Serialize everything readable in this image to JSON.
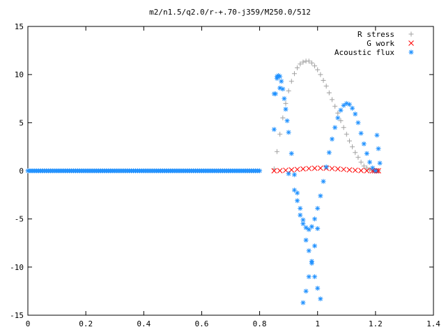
{
  "chart_data": {
    "type": "scatter",
    "title": "m2/n1.5/q2.0/r-+.70-j359/M250.0/512",
    "xlabel": "",
    "ylabel": "",
    "xlim": [
      0,
      1.4
    ],
    "ylim": [
      -15,
      15
    ],
    "x_ticks": [
      "0",
      "0.2",
      "0.4",
      "0.6",
      "0.8",
      "1",
      "1.2",
      "1.4"
    ],
    "y_ticks": [
      "15",
      "10",
      "5",
      "0",
      "-5",
      "-10",
      "-15"
    ],
    "grid": false,
    "legend_position": "top-right",
    "series": [
      {
        "name": "R stress",
        "marker": "plus",
        "color": "#a0a0a0",
        "x": [
          0,
          0.05,
          0.1,
          0.15,
          0.2,
          0.25,
          0.3,
          0.35,
          0.4,
          0.45,
          0.5,
          0.55,
          0.6,
          0.65,
          0.7,
          0.75,
          0.8,
          0.85,
          0.86,
          0.87,
          0.88,
          0.89,
          0.9,
          0.91,
          0.92,
          0.93,
          0.94,
          0.95,
          0.96,
          0.97,
          0.98,
          0.99,
          1.0,
          1.01,
          1.02,
          1.03,
          1.04,
          1.05,
          1.06,
          1.07,
          1.08,
          1.09,
          1.1,
          1.11,
          1.12,
          1.13,
          1.14,
          1.15,
          1.16,
          1.17,
          1.18,
          1.19,
          1.2,
          1.21
        ],
        "y": [
          0,
          0,
          0,
          0,
          0,
          0,
          0,
          0,
          0,
          0,
          0,
          0,
          0,
          0,
          0,
          0,
          0,
          0.2,
          2.0,
          3.8,
          5.5,
          7.0,
          8.3,
          9.3,
          10.1,
          10.7,
          11.1,
          11.3,
          11.4,
          11.4,
          11.2,
          10.9,
          10.5,
          10.0,
          9.4,
          8.8,
          8.1,
          7.4,
          6.7,
          6.0,
          5.2,
          4.5,
          3.8,
          3.1,
          2.5,
          1.9,
          1.4,
          0.9,
          0.5,
          0.3,
          0.1,
          0.05,
          0,
          0
        ]
      },
      {
        "name": "G work",
        "marker": "cross",
        "color": "#ff0000",
        "x": [
          0.85,
          0.87,
          0.89,
          0.91,
          0.93,
          0.95,
          0.97,
          0.99,
          1.01,
          1.03,
          1.05,
          1.07,
          1.09,
          1.11,
          1.13,
          1.15,
          1.17,
          1.19,
          1.21
        ],
        "y": [
          0,
          0.02,
          0.06,
          0.1,
          0.15,
          0.2,
          0.24,
          0.27,
          0.28,
          0.27,
          0.24,
          0.2,
          0.15,
          0.1,
          0.06,
          0.03,
          0.01,
          0,
          0
        ]
      },
      {
        "name": "Acoustic flux",
        "marker": "star",
        "color": "#1e90ff",
        "x": [
          0,
          0.05,
          0.1,
          0.15,
          0.2,
          0.25,
          0.3,
          0.35,
          0.4,
          0.45,
          0.5,
          0.55,
          0.6,
          0.65,
          0.7,
          0.75,
          0.8,
          0.85,
          0.855,
          0.86,
          0.865,
          0.87,
          0.875,
          0.88,
          0.885,
          0.89,
          0.895,
          0.9,
          0.91,
          0.92,
          0.93,
          0.94,
          0.95,
          0.96,
          0.97,
          0.98,
          0.99,
          1.0,
          1.01,
          1.02,
          1.03,
          1.04,
          1.05,
          1.06,
          1.07,
          1.08,
          1.09,
          1.1,
          1.11,
          1.12,
          1.13,
          1.14,
          1.15,
          1.16,
          1.17,
          1.18,
          1.19,
          1.2,
          1.205,
          1.21,
          1.215,
          0.85,
          0.86,
          0.87,
          0.9,
          0.92,
          0.93,
          0.94,
          0.95,
          0.96,
          0.97,
          0.98,
          0.99,
          1.0,
          1.01,
          0.95,
          0.96,
          0.97,
          0.98,
          0.99,
          1.0
        ],
        "y": [
          0,
          0,
          0,
          0,
          0,
          0,
          0,
          0,
          0,
          0,
          0,
          0,
          0,
          0,
          0,
          0,
          0,
          4.3,
          8.0,
          9.6,
          9.9,
          9.8,
          9.3,
          8.5,
          7.5,
          6.4,
          5.2,
          4.0,
          1.8,
          -0.4,
          -2.3,
          -3.9,
          -5.1,
          -5.9,
          -6.1,
          -5.8,
          -5.0,
          -3.9,
          -2.6,
          -1.1,
          0.4,
          1.9,
          3.3,
          4.5,
          5.5,
          6.3,
          6.8,
          7.0,
          6.9,
          6.5,
          5.9,
          5.0,
          3.9,
          2.8,
          1.8,
          0.9,
          0.3,
          0,
          3.7,
          2.3,
          0.8,
          8.0,
          9.8,
          8.6,
          -0.3,
          -2.0,
          -3.1,
          -4.6,
          -5.5,
          -7.2,
          -8.3,
          -9.6,
          -11.0,
          -12.2,
          -13.3,
          -13.7,
          -12.5,
          -11.0,
          -9.4,
          -7.8,
          -6.0
        ]
      }
    ]
  }
}
